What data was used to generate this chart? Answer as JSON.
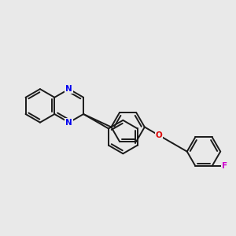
{
  "background_color": "#e9e9e9",
  "bond_color": "#1a1a1a",
  "N_color": "#0000ee",
  "O_color": "#dd0000",
  "F_color": "#cc00cc",
  "line_width": 1.4,
  "dbo": 0.045,
  "figsize": [
    3.0,
    3.0
  ],
  "dpi": 100,
  "xlim": [
    -1.6,
    2.6
  ],
  "ylim": [
    -1.5,
    1.5
  ]
}
